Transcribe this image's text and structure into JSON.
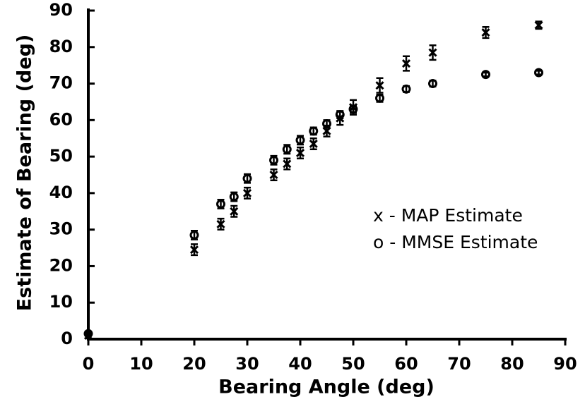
{
  "chart_data": {
    "type": "scatter",
    "x_label": "Bearing Angle  (deg)",
    "y_label": "Estimate of Bearing  (deg)",
    "xlim": [
      0,
      90
    ],
    "ylim": [
      0,
      90
    ],
    "xticks": [
      0,
      10,
      20,
      30,
      40,
      50,
      60,
      70,
      80,
      90
    ],
    "yticks": [
      0,
      10,
      20,
      30,
      40,
      50,
      60,
      70,
      80,
      90
    ],
    "series": [
      {
        "name": "x - MAP Estimate",
        "marker": "x",
        "color": "#000000",
        "x": [
          0,
          20,
          25,
          27.5,
          30,
          35,
          37.5,
          40,
          42.5,
          45,
          47.5,
          50,
          55,
          60,
          65,
          75,
          85
        ],
        "values": [
          1,
          24.5,
          31.5,
          35,
          40,
          45,
          48,
          51,
          53.5,
          57,
          60.5,
          63.5,
          69.5,
          75.5,
          78.5,
          84,
          86
        ],
        "errors": [
          0.8,
          1.5,
          1.5,
          1.5,
          1.5,
          1.5,
          1.5,
          1.5,
          1.5,
          1.5,
          1.8,
          2,
          2,
          2,
          2,
          1.5,
          1
        ]
      },
      {
        "name": "o - MMSE Estimate",
        "marker": "o",
        "color": "#000000",
        "x": [
          0,
          20,
          25,
          27.5,
          30,
          35,
          37.5,
          40,
          42.5,
          45,
          47.5,
          50,
          55,
          60,
          65,
          75,
          85
        ],
        "values": [
          1.5,
          28.5,
          37,
          39,
          44,
          49,
          52,
          54.5,
          57,
          59,
          61.5,
          63,
          66,
          68.5,
          70,
          72.5,
          73
        ],
        "errors": [
          0.5,
          1.2,
          1.2,
          1.2,
          1.2,
          1.2,
          1.2,
          1.2,
          1,
          1,
          1,
          1,
          1,
          0.8,
          0.8,
          0.5,
          0.5
        ]
      }
    ]
  }
}
